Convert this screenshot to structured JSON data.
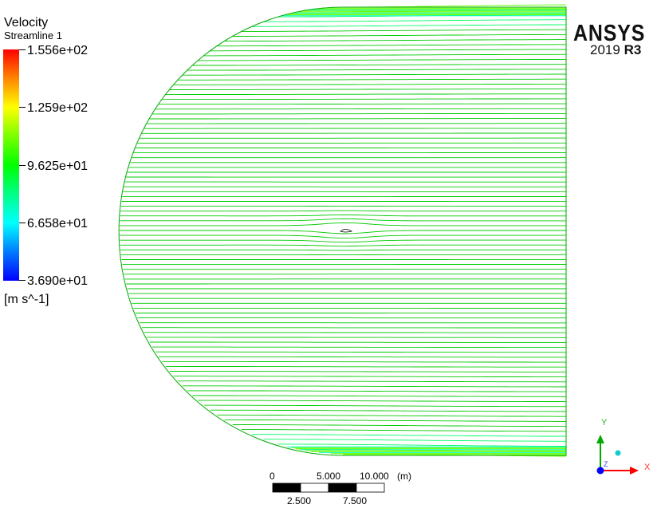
{
  "legend": {
    "title": "Velocity",
    "subtitle": "Streamline 1",
    "ticks": [
      "1.556e+02",
      "1.259e+02",
      "9.625e+01",
      "6.658e+01",
      "3.690e+01"
    ],
    "units": "[m s^-1]",
    "colors": [
      "#ff0000",
      "#ffff00",
      "#00ff00",
      "#00ffff",
      "#0000ff"
    ]
  },
  "brand": {
    "name": "ANSYS",
    "version_year": "2019",
    "version_release": "R3"
  },
  "scale_bar": {
    "top_labels": [
      "0",
      "5.000",
      "10.000",
      "(m)"
    ],
    "bottom_labels": [
      "2.500",
      "7.500"
    ]
  },
  "axes": {
    "y_label": "Y",
    "x_label": "X",
    "z_label": "Z",
    "colors": {
      "x": "#ff0000",
      "y": "#00aa00",
      "z": "#0000ff"
    }
  },
  "streamlines": {
    "line_color": "#00cc00",
    "accent_colors": [
      "#00ff66",
      "#66ff00",
      "#00ffcc"
    ]
  }
}
